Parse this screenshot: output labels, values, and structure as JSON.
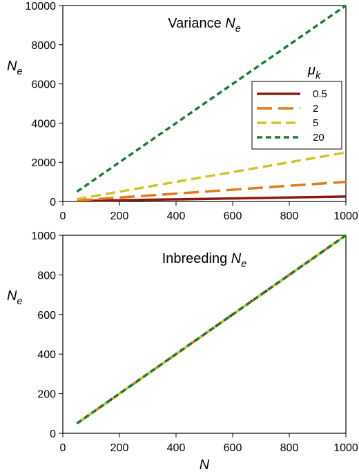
{
  "chart_data": [
    {
      "type": "line",
      "title": "Variance",
      "title_symbol": "N",
      "title_symbol_sub": "e",
      "xlabel": "",
      "ylabel_symbol": "N",
      "ylabel_symbol_sub": "e",
      "xlim": [
        0,
        1000
      ],
      "ylim": [
        0,
        10000
      ],
      "xticks": [
        0,
        200,
        400,
        600,
        800,
        1000
      ],
      "yticks": [
        0,
        2000,
        4000,
        6000,
        8000,
        10000
      ],
      "grid": false,
      "legend": {
        "title_symbol": "μ",
        "title_symbol_sub": "k",
        "placement": "right"
      },
      "series": [
        {
          "name": "0.5",
          "color": "#8b1a0e",
          "style": "solid",
          "x": [
            50,
            1000
          ],
          "y": [
            25,
            250
          ]
        },
        {
          "name": "2",
          "color": "#e07b1c",
          "style": "long-dash",
          "x": [
            50,
            1000
          ],
          "y": [
            50,
            1000
          ]
        },
        {
          "name": "5",
          "color": "#cfc52a",
          "style": "medium-dash",
          "x": [
            50,
            1000
          ],
          "y": [
            125,
            2500
          ]
        },
        {
          "name": "20",
          "color": "#1f7a3a",
          "style": "short-dash",
          "x": [
            50,
            1000
          ],
          "y": [
            500,
            10000
          ]
        }
      ]
    },
    {
      "type": "line",
      "title": "Inbreeding",
      "title_symbol": "N",
      "title_symbol_sub": "e",
      "xlabel_symbol": "N",
      "ylabel_symbol": "N",
      "ylabel_symbol_sub": "e",
      "xlim": [
        0,
        1000
      ],
      "ylim": [
        0,
        1000
      ],
      "xticks": [
        0,
        200,
        400,
        600,
        800,
        1000
      ],
      "yticks": [
        0,
        200,
        400,
        600,
        800,
        1000
      ],
      "grid": false,
      "series": [
        {
          "color": "#8b1a0e",
          "style": "solid",
          "x": [
            50,
            1000
          ],
          "y": [
            50,
            1000
          ]
        },
        {
          "color": "#e07b1c",
          "style": "long-dash",
          "x": [
            50,
            1000
          ],
          "y": [
            50,
            1000
          ]
        },
        {
          "color": "#cfc52a",
          "style": "medium-dash",
          "x": [
            50,
            1000
          ],
          "y": [
            50,
            1000
          ]
        },
        {
          "color": "#1f7a3a",
          "style": "short-dash",
          "x": [
            50,
            1000
          ],
          "y": [
            50,
            1000
          ]
        }
      ]
    }
  ]
}
